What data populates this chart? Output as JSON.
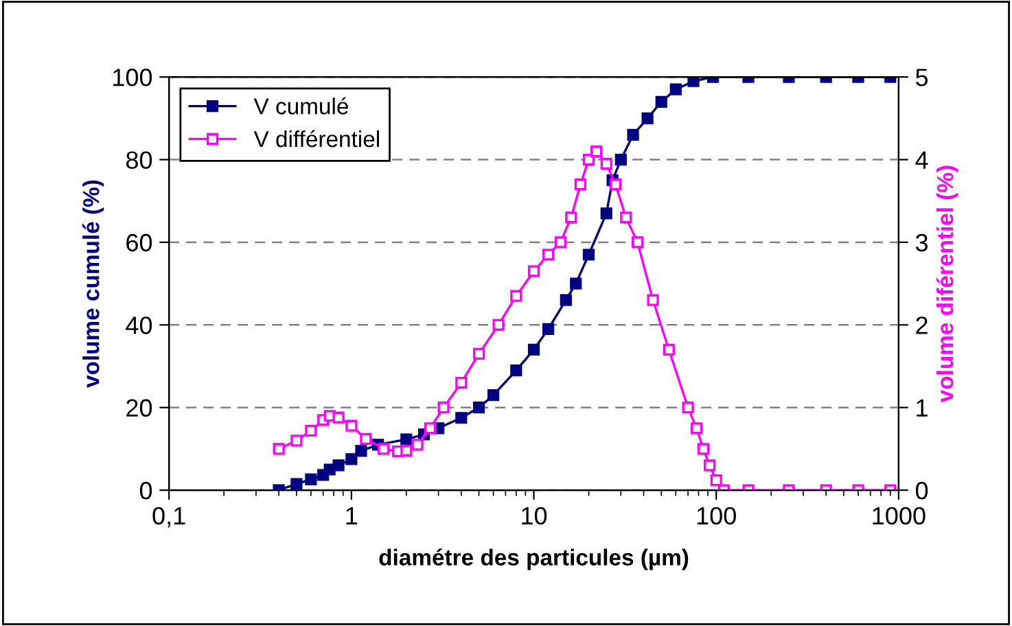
{
  "chart_data": {
    "type": "line",
    "xlabel": "diamétre des particules (µm)",
    "ylabel": "volume cumulé (%)",
    "y2label": "volume diférentiel (%)",
    "log": "x",
    "grid": "y",
    "legend": "top left",
    "marker": "square",
    "line_style": "solid",
    "xlim": [
      0.1,
      1000
    ],
    "xticks": [
      {
        "value": 0.1,
        "label": "0,1"
      },
      1,
      10,
      100,
      1000
    ],
    "ylim": [
      0,
      100
    ],
    "yticks": [
      0,
      20,
      40,
      60,
      80,
      100
    ],
    "y2lim": [
      0,
      5
    ],
    "y2ticks": [
      0,
      1,
      2,
      3,
      4,
      5
    ],
    "series": [
      {
        "name": "V cumulé",
        "color": "#000080",
        "x": [
          0.4,
          0.5,
          0.6,
          0.7,
          0.76,
          0.85,
          1,
          1.13,
          1.4,
          2,
          2.5,
          3,
          4,
          5,
          6,
          8,
          10,
          12,
          15,
          17,
          20,
          25,
          27,
          30,
          35,
          42,
          50,
          60,
          75,
          96,
          150,
          250,
          400,
          600,
          900
        ],
        "values": [
          0,
          1.5,
          2.6,
          3.7,
          5,
          6,
          7.5,
          9.5,
          11,
          12.3,
          13.5,
          15,
          17.5,
          20,
          23,
          29,
          34,
          39,
          46,
          50,
          57,
          67,
          75,
          80,
          86,
          90,
          94,
          97,
          99,
          100,
          100,
          100,
          100,
          100,
          100
        ]
      },
      {
        "name": "V différentiel",
        "color": "#ff00ff",
        "axis": "y2",
        "x": [
          0.4,
          0.5,
          0.6,
          0.7,
          0.76,
          0.85,
          1,
          1.2,
          1.5,
          1.8,
          2,
          2.3,
          2.7,
          3.2,
          4,
          5,
          6.4,
          8,
          10,
          12,
          14,
          16,
          18,
          20,
          22,
          25,
          28,
          32,
          37,
          45,
          55,
          70,
          78,
          85,
          92,
          100,
          110,
          150,
          250,
          400,
          600,
          900
        ],
        "values": [
          0.5,
          0.6,
          0.72,
          0.85,
          0.9,
          0.88,
          0.78,
          0.62,
          0.5,
          0.47,
          0.48,
          0.55,
          0.75,
          1.0,
          1.3,
          1.65,
          2.0,
          2.35,
          2.65,
          2.85,
          3.0,
          3.3,
          3.7,
          4.0,
          4.1,
          3.95,
          3.7,
          3.3,
          3.0,
          2.3,
          1.7,
          1.0,
          0.75,
          0.5,
          0.3,
          0.12,
          0,
          0,
          0,
          0,
          0,
          0
        ]
      }
    ]
  }
}
